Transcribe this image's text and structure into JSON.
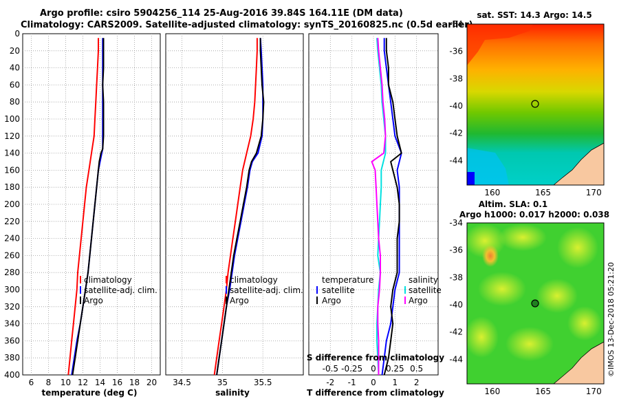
{
  "header": {
    "line1": "Argo profile: csiro 5904256_114 25-Aug-2016 39.84S 164.11E (DM data)",
    "line2": "Climatology: CARS2009. Satellite-adjusted climatology: synTS_20160825.nc (0.5d earlier)"
  },
  "colors": {
    "climatology": "#ff0000",
    "satellite": "#0000ff",
    "argo": "#000000",
    "s_satellite": "#00e0e0",
    "s_argo": "#ff00ff"
  },
  "chart_data": [
    {
      "type": "line",
      "name": "temperature profile",
      "xlabel": "temperature (deg C)",
      "xlim": [
        5,
        21
      ],
      "xticks": [
        "6",
        "8",
        "10",
        "12",
        "14",
        "16",
        "18",
        "20"
      ],
      "ylim": [
        0,
        400
      ],
      "yticks": [
        "0",
        "20",
        "40",
        "60",
        "80",
        "100",
        "120",
        "140",
        "160",
        "180",
        "200",
        "220",
        "240",
        "260",
        "280",
        "300",
        "320",
        "340",
        "360",
        "380",
        "400"
      ],
      "legend": [
        "climatology",
        "satellite-adj. clim.",
        "Argo"
      ],
      "series": [
        {
          "name": "climatology",
          "color": "red",
          "depth": [
            5,
            20,
            40,
            60,
            80,
            100,
            120,
            140,
            160,
            180,
            200,
            220,
            240,
            260,
            280,
            300,
            320,
            340,
            360,
            380,
            400
          ],
          "values": [
            13.8,
            13.8,
            13.7,
            13.6,
            13.5,
            13.4,
            13.3,
            13.0,
            12.7,
            12.4,
            12.2,
            12.0,
            11.8,
            11.6,
            11.4,
            11.3,
            11.1,
            10.9,
            10.7,
            10.5,
            10.3
          ]
        },
        {
          "name": "satellite-adj. clim.",
          "color": "blue",
          "depth": [
            5,
            20,
            40,
            60,
            80,
            100,
            120,
            135,
            150,
            160,
            180,
            200,
            220,
            240,
            260,
            280,
            300,
            320,
            340,
            360,
            380,
            400
          ],
          "values": [
            14.3,
            14.3,
            14.3,
            14.3,
            14.3,
            14.3,
            14.3,
            14.3,
            14.0,
            13.8,
            13.6,
            13.4,
            13.2,
            13.0,
            12.8,
            12.6,
            12.3,
            12.0,
            11.7,
            11.3,
            11.0,
            10.7
          ]
        },
        {
          "name": "Argo",
          "color": "black",
          "depth": [
            5,
            20,
            40,
            60,
            80,
            100,
            120,
            135,
            140,
            150,
            160,
            180,
            200,
            220,
            240,
            260,
            280,
            300,
            320,
            340,
            360,
            380,
            400
          ],
          "values": [
            14.4,
            14.4,
            14.4,
            14.3,
            14.4,
            14.4,
            14.4,
            14.3,
            14.1,
            13.9,
            13.8,
            13.6,
            13.4,
            13.2,
            13.0,
            12.8,
            12.6,
            12.3,
            12.0,
            11.7,
            11.4,
            11.1,
            10.8
          ]
        }
      ]
    },
    {
      "type": "line",
      "name": "salinity profile",
      "xlabel": "salinity",
      "xlim": [
        34.3,
        36.0
      ],
      "xticks": [
        "34.5",
        "35",
        "35.5"
      ],
      "ylim": [
        0,
        400
      ],
      "legend": [
        "climatology",
        "satellite-adj. clim.",
        "Argo"
      ],
      "series": [
        {
          "name": "climatology",
          "color": "red",
          "depth": [
            5,
            20,
            40,
            60,
            80,
            100,
            120,
            140,
            160,
            180,
            200,
            220,
            240,
            260,
            280,
            300,
            320,
            340,
            360,
            380,
            400
          ],
          "values": [
            35.43,
            35.43,
            35.42,
            35.41,
            35.4,
            35.38,
            35.35,
            35.3,
            35.25,
            35.22,
            35.19,
            35.16,
            35.13,
            35.1,
            35.07,
            35.05,
            35.02,
            34.99,
            34.96,
            34.93,
            34.9
          ]
        },
        {
          "name": "satellite-adj. clim.",
          "color": "blue",
          "depth": [
            5,
            20,
            40,
            60,
            80,
            100,
            120,
            140,
            150,
            160,
            180,
            200,
            220,
            240,
            260,
            280,
            300,
            320,
            340,
            360,
            380,
            400
          ],
          "values": [
            35.47,
            35.48,
            35.49,
            35.5,
            35.5,
            35.5,
            35.49,
            35.44,
            35.37,
            35.34,
            35.31,
            35.27,
            35.23,
            35.19,
            35.15,
            35.12,
            35.09,
            35.05,
            35.02,
            34.99,
            34.96,
            34.93
          ]
        },
        {
          "name": "Argo",
          "color": "black",
          "depth": [
            5,
            20,
            40,
            60,
            80,
            100,
            120,
            140,
            150,
            160,
            180,
            200,
            220,
            240,
            260,
            280,
            300,
            320,
            340,
            360,
            380,
            400
          ],
          "values": [
            35.47,
            35.47,
            35.48,
            35.49,
            35.51,
            35.5,
            35.48,
            35.42,
            35.36,
            35.33,
            35.3,
            35.26,
            35.22,
            35.18,
            35.14,
            35.11,
            35.08,
            35.05,
            35.02,
            34.99,
            34.96,
            34.93
          ]
        }
      ]
    },
    {
      "type": "line",
      "name": "difference from climatology",
      "xlabel": "T difference from climatology",
      "xlabel2": "S difference from climatology",
      "xlim": [
        -3,
        3
      ],
      "xticks": [
        "-2",
        "-1",
        "0",
        "1",
        "2"
      ],
      "xticks2": [
        "-0.5",
        "-0.25",
        "0",
        "0.25",
        "0.5"
      ],
      "ylim": [
        0,
        400
      ],
      "legend_temperature_title": "temperature",
      "legend_temperature": [
        "satellite",
        "Argo"
      ],
      "legend_salinity_title": "salinity",
      "legend_salinity": [
        "satellite",
        "Argo"
      ],
      "series": [
        {
          "name": "T satellite",
          "color": "blue",
          "depth": [
            5,
            20,
            40,
            60,
            80,
            100,
            120,
            140,
            160,
            180,
            200,
            220,
            240,
            260,
            280,
            300,
            320,
            340,
            360,
            380,
            400
          ],
          "values": [
            0.5,
            0.5,
            0.6,
            0.7,
            0.8,
            0.9,
            1.0,
            1.3,
            1.1,
            1.2,
            1.2,
            1.2,
            1.2,
            1.2,
            1.2,
            1.0,
            0.9,
            0.8,
            0.6,
            0.5,
            0.4
          ]
        },
        {
          "name": "T Argo",
          "color": "black",
          "depth": [
            5,
            20,
            40,
            60,
            80,
            100,
            120,
            140,
            150,
            160,
            180,
            200,
            220,
            240,
            260,
            280,
            300,
            320,
            340,
            360,
            380,
            400
          ],
          "values": [
            0.6,
            0.6,
            0.7,
            0.7,
            0.9,
            1.0,
            1.1,
            1.3,
            0.8,
            0.9,
            1.1,
            1.2,
            1.2,
            1.1,
            1.1,
            1.1,
            0.9,
            0.8,
            0.9,
            0.8,
            0.7,
            0.5
          ]
        },
        {
          "name": "S satellite",
          "color": "cyan",
          "depth": [
            5,
            20,
            40,
            60,
            80,
            100,
            120,
            140,
            160,
            180,
            200,
            220,
            240,
            260,
            280,
            300,
            320,
            340,
            360,
            380,
            400
          ],
          "values": [
            0.04,
            0.05,
            0.07,
            0.09,
            0.1,
            0.12,
            0.14,
            0.14,
            0.09,
            0.09,
            0.08,
            0.07,
            0.06,
            0.05,
            0.08,
            0.06,
            0.05,
            0.04,
            0.04,
            0.05,
            0.06
          ]
        },
        {
          "name": "S Argo",
          "color": "magenta",
          "depth": [
            5,
            20,
            40,
            60,
            80,
            100,
            120,
            140,
            150,
            160,
            180,
            200,
            220,
            240,
            260,
            280,
            300,
            320,
            340,
            360,
            380,
            400
          ],
          "values": [
            0.05,
            0.06,
            0.08,
            0.1,
            0.11,
            0.13,
            0.14,
            0.12,
            -0.02,
            0.02,
            0.03,
            0.04,
            0.05,
            0.06,
            0.08,
            0.08,
            0.07,
            0.05,
            0.05,
            0.06,
            0.06,
            0.06
          ]
        }
      ]
    },
    {
      "type": "heatmap",
      "name": "satellite SST map",
      "title": "sat. SST: 14.3 Argo: 14.5",
      "xticks": [
        "160",
        "165",
        "170"
      ],
      "yticks": [
        "-34",
        "-36",
        "-38",
        "-40",
        "-42",
        "-44"
      ]
    },
    {
      "type": "heatmap",
      "name": "altimetry SLA map",
      "title1": "Altim. SLA: 0.1",
      "title2": "Argo h1000: 0.017 h2000: 0.038",
      "xticks": [
        "160",
        "165",
        "170"
      ],
      "yticks": [
        "-34",
        "-36",
        "-38",
        "-40",
        "-42",
        "-44"
      ]
    }
  ],
  "credit": "©IMOS 13-Dec-2018 05:21:20"
}
